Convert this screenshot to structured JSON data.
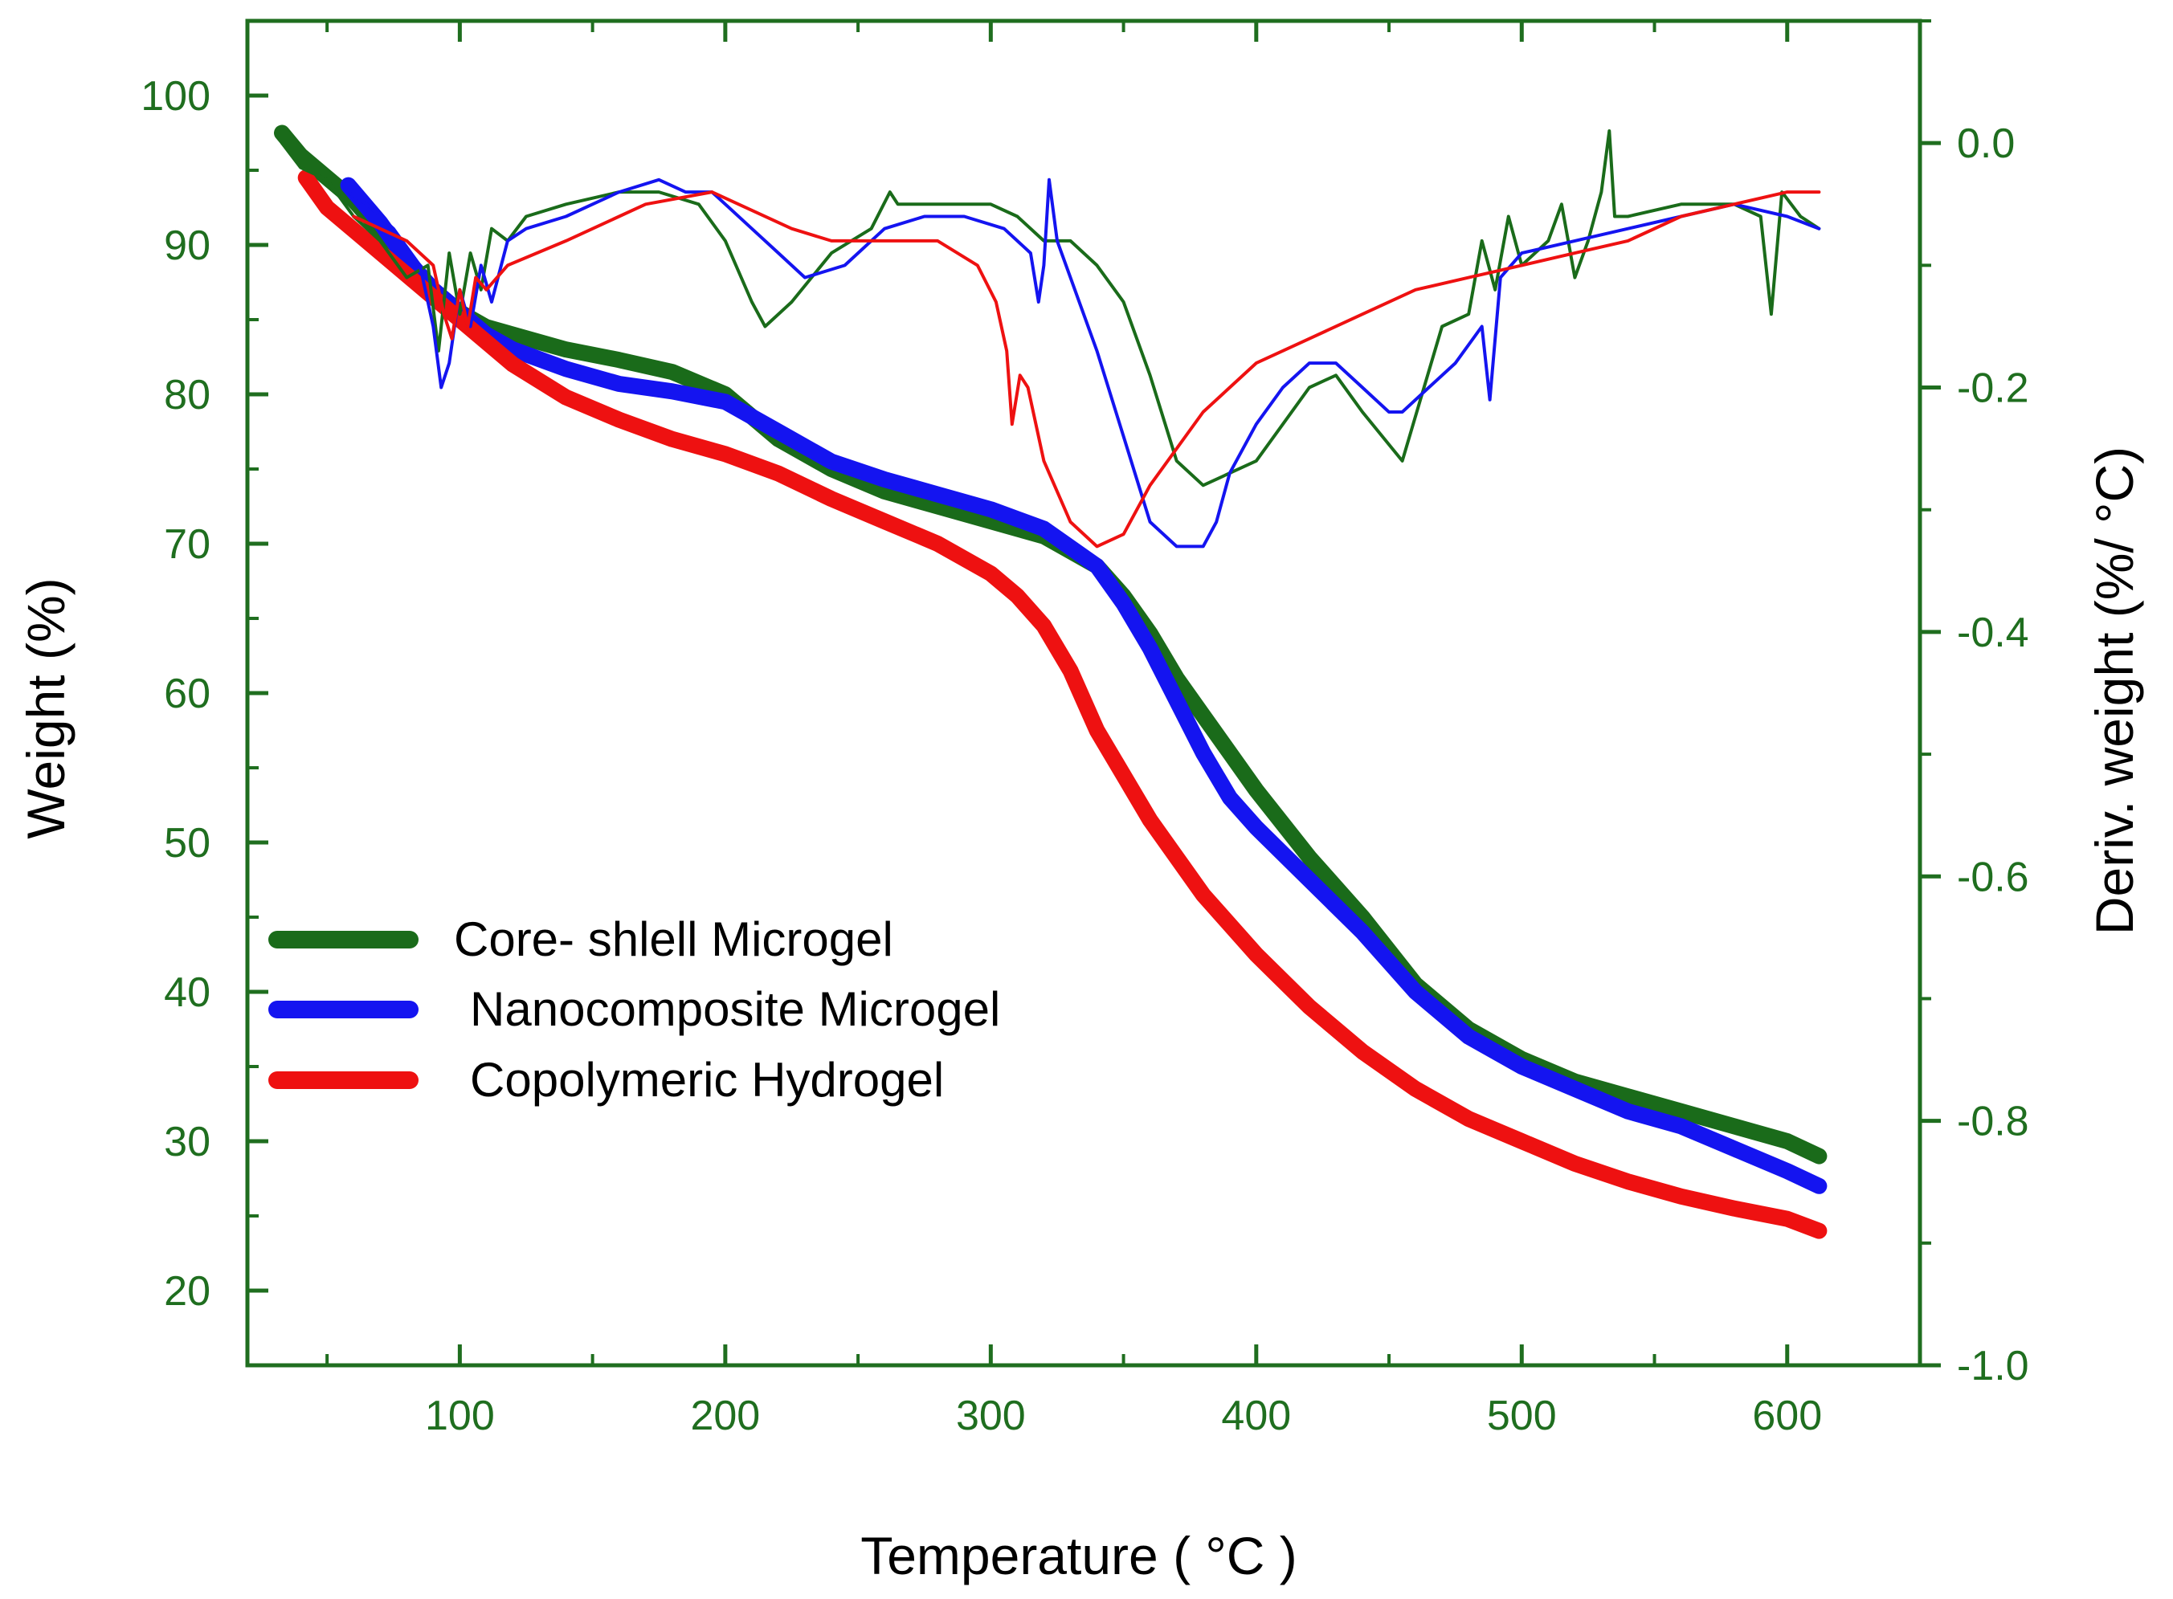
{
  "chart_data": {
    "type": "line",
    "xlabel": "Temperature ( °C )",
    "ylabel": "Weight (%)",
    "y2label": "Deriv. weight (%/ °C)",
    "xlim": [
      20,
      650
    ],
    "ylim": [
      15,
      105
    ],
    "y2lim": [
      -1.0,
      0.1
    ],
    "x_ticks": [
      100,
      200,
      300,
      400,
      500,
      600
    ],
    "y_ticks": [
      20,
      30,
      40,
      50,
      60,
      70,
      80,
      90,
      100
    ],
    "y2_ticks": [
      -1.0,
      -0.8,
      -0.6,
      -0.4,
      -0.2,
      0.0
    ],
    "x_tick_labels": [
      "100",
      "200",
      "300",
      "400",
      "500",
      "600"
    ],
    "y_tick_labels": [
      "20",
      "30",
      "40",
      "50",
      "60",
      "70",
      "80",
      "90",
      "100"
    ],
    "y2_tick_labels": [
      "-1.0",
      "-0.8",
      "-0.6",
      "-0.4",
      "-0.2",
      "0.0"
    ],
    "axis_color": "#1f6e1f",
    "grid": false,
    "legend_position": "bottom-left",
    "legend": [
      "Core- shlell Microgel",
      "Nanocomposite Microgel",
      "Copolymeric Hydrogel"
    ],
    "series": [
      {
        "name": "Core- shlell Microgel",
        "axis": "left",
        "color": "#1a6b1a",
        "x": [
          33,
          40,
          50,
          60,
          70,
          80,
          90,
          100,
          110,
          120,
          140,
          160,
          180,
          200,
          220,
          240,
          260,
          280,
          300,
          320,
          340,
          350,
          360,
          370,
          380,
          390,
          400,
          420,
          440,
          460,
          480,
          500,
          520,
          540,
          560,
          580,
          600,
          612
        ],
        "y": [
          97.5,
          96,
          94.5,
          93,
          91,
          89,
          87,
          85.5,
          84.5,
          84,
          83,
          82.3,
          81.5,
          80,
          77,
          75,
          73.5,
          72.5,
          71.5,
          70.5,
          68.5,
          66.5,
          64,
          61,
          58.5,
          56,
          53.5,
          49,
          45,
          40.5,
          37.5,
          35.5,
          34,
          33,
          32,
          31,
          30,
          29
        ]
      },
      {
        "name": "Nanocomposite Microgel",
        "axis": "left",
        "color": "#1414f0",
        "x": [
          58,
          70,
          80,
          90,
          100,
          110,
          120,
          140,
          160,
          180,
          200,
          220,
          240,
          260,
          280,
          300,
          320,
          340,
          350,
          360,
          370,
          380,
          390,
          400,
          420,
          440,
          460,
          480,
          500,
          520,
          540,
          560,
          580,
          600,
          612
        ],
        "y": [
          94,
          91.5,
          89,
          87,
          85.5,
          84,
          83,
          81.7,
          80.7,
          80.2,
          79.5,
          77.5,
          75.5,
          74.3,
          73.3,
          72.3,
          71,
          68.5,
          66,
          63,
          59.5,
          56,
          53,
          51,
          47.5,
          44,
          40,
          37,
          35,
          33.5,
          32,
          31,
          29.5,
          28,
          27
        ]
      },
      {
        "name": "Copolymeric Hydrogel",
        "axis": "left",
        "color": "#ee1111",
        "x": [
          42,
          50,
          60,
          70,
          80,
          90,
          100,
          110,
          120,
          140,
          160,
          180,
          200,
          220,
          240,
          260,
          280,
          300,
          310,
          320,
          330,
          340,
          350,
          360,
          380,
          400,
          420,
          440,
          460,
          480,
          500,
          520,
          540,
          560,
          580,
          600,
          612
        ],
        "y": [
          94.5,
          92.5,
          91,
          89.5,
          88,
          86.5,
          85,
          83.5,
          82,
          79.8,
          78.3,
          77,
          76,
          74.7,
          73,
          71.5,
          70,
          68,
          66.5,
          64.5,
          61.5,
          57.5,
          54.5,
          51.5,
          46.5,
          42.5,
          39,
          36,
          33.5,
          31.5,
          30,
          28.5,
          27.3,
          26.3,
          25.5,
          24.8,
          24
        ]
      },
      {
        "name": "Core- shlell Microgel",
        "axis": "right",
        "color": "#1a6b1a",
        "x": [
          33,
          40,
          50,
          60,
          70,
          80,
          88,
          92,
          96,
          100,
          104,
          108,
          112,
          118,
          125,
          140,
          160,
          175,
          190,
          200,
          210,
          215,
          225,
          240,
          255,
          262,
          265,
          280,
          300,
          310,
          320,
          330,
          340,
          350,
          360,
          370,
          380,
          390,
          400,
          410,
          420,
          430,
          440,
          455,
          470,
          480,
          485,
          490,
          495,
          500,
          510,
          515,
          520,
          525,
          530,
          533,
          535,
          540,
          560,
          580,
          590,
          594,
          598,
          605,
          612
        ],
        "y": [
          0.0,
          -0.02,
          -0.03,
          -0.06,
          -0.08,
          -0.11,
          -0.1,
          -0.17,
          -0.09,
          -0.14,
          -0.09,
          -0.12,
          -0.07,
          -0.08,
          -0.06,
          -0.05,
          -0.04,
          -0.04,
          -0.05,
          -0.08,
          -0.13,
          -0.15,
          -0.13,
          -0.09,
          -0.07,
          -0.04,
          -0.05,
          -0.05,
          -0.05,
          -0.06,
          -0.08,
          -0.08,
          -0.1,
          -0.13,
          -0.19,
          -0.26,
          -0.28,
          -0.27,
          -0.26,
          -0.23,
          -0.2,
          -0.19,
          -0.22,
          -0.26,
          -0.15,
          -0.14,
          -0.08,
          -0.12,
          -0.06,
          -0.1,
          -0.08,
          -0.05,
          -0.11,
          -0.08,
          -0.04,
          0.01,
          -0.06,
          -0.06,
          -0.05,
          -0.05,
          -0.06,
          -0.14,
          -0.04,
          -0.06,
          -0.07
        ]
      },
      {
        "name": "Nanocomposite Microgel",
        "axis": "right",
        "color": "#1414f0",
        "x": [
          58,
          65,
          75,
          85,
          90,
          93,
          96,
          100,
          104,
          108,
          112,
          118,
          125,
          140,
          160,
          175,
          185,
          195,
          200,
          210,
          220,
          230,
          245,
          260,
          275,
          290,
          305,
          315,
          318,
          320,
          322,
          325,
          330,
          340,
          350,
          360,
          370,
          380,
          385,
          390,
          400,
          410,
          420,
          430,
          440,
          450,
          455,
          465,
          475,
          485,
          488,
          492,
          500,
          520,
          540,
          560,
          580,
          600,
          612
        ],
        "y": [
          -0.04,
          -0.05,
          -0.07,
          -0.1,
          -0.15,
          -0.2,
          -0.18,
          -0.12,
          -0.15,
          -0.1,
          -0.13,
          -0.08,
          -0.07,
          -0.06,
          -0.04,
          -0.03,
          -0.04,
          -0.04,
          -0.05,
          -0.07,
          -0.09,
          -0.11,
          -0.1,
          -0.07,
          -0.06,
          -0.06,
          -0.07,
          -0.09,
          -0.13,
          -0.1,
          -0.03,
          -0.08,
          -0.11,
          -0.17,
          -0.24,
          -0.31,
          -0.33,
          -0.33,
          -0.31,
          -0.27,
          -0.23,
          -0.2,
          -0.18,
          -0.18,
          -0.2,
          -0.22,
          -0.22,
          -0.2,
          -0.18,
          -0.15,
          -0.21,
          -0.11,
          -0.09,
          -0.08,
          -0.07,
          -0.06,
          -0.05,
          -0.06,
          -0.07
        ]
      },
      {
        "name": "Copolymeric Hydrogel",
        "axis": "right",
        "color": "#ee1111",
        "x": [
          60,
          80,
          90,
          94,
          97,
          100,
          103,
          106,
          110,
          118,
          140,
          170,
          195,
          205,
          225,
          240,
          260,
          280,
          295,
          302,
          306,
          308,
          311,
          314,
          320,
          330,
          340,
          350,
          360,
          380,
          400,
          420,
          440,
          460,
          480,
          500,
          520,
          540,
          560,
          580,
          600,
          612
        ],
        "y": [
          -0.06,
          -0.08,
          -0.1,
          -0.14,
          -0.16,
          -0.12,
          -0.15,
          -0.11,
          -0.12,
          -0.1,
          -0.08,
          -0.05,
          -0.04,
          -0.05,
          -0.07,
          -0.08,
          -0.08,
          -0.08,
          -0.1,
          -0.13,
          -0.17,
          -0.23,
          -0.19,
          -0.2,
          -0.26,
          -0.31,
          -0.33,
          -0.32,
          -0.28,
          -0.22,
          -0.18,
          -0.16,
          -0.14,
          -0.12,
          -0.11,
          -0.1,
          -0.09,
          -0.08,
          -0.06,
          -0.05,
          -0.04,
          -0.04
        ]
      }
    ]
  }
}
